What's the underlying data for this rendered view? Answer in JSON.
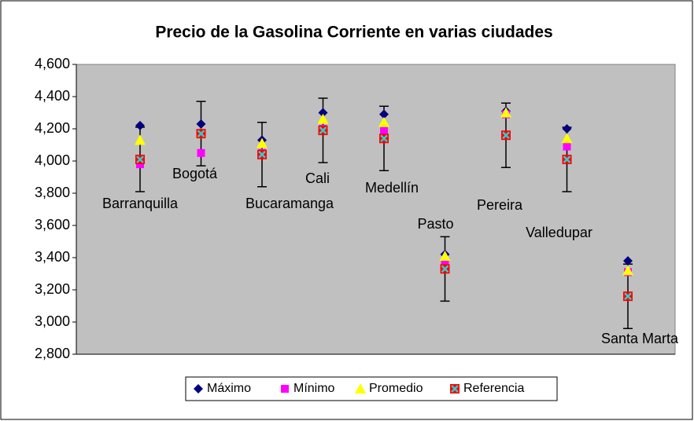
{
  "chart_data": {
    "type": "dot-range",
    "title": "Precio de la Gasolina Corriente en varias ciudades",
    "categories": [
      "Barranquilla",
      "Bogotá",
      "Bucaramanga",
      "Cali",
      "Medellín",
      "Pasto",
      "Pereira",
      "Valledupar",
      "Santa Marta"
    ],
    "series": [
      {
        "name": "Máximo",
        "color": "#000080",
        "marker": "diamond",
        "values": [
          4220,
          4230,
          4130,
          4300,
          4290,
          3420,
          4310,
          4200,
          3380
        ]
      },
      {
        "name": "Mínimo",
        "color": "#ff00ff",
        "marker": "square",
        "values": [
          3980,
          4050,
          4050,
          4200,
          4190,
          3360,
          4290,
          4090,
          3310
        ]
      },
      {
        "name": "Promedio",
        "color": "#ffff00",
        "marker": "triangle",
        "values": [
          4130,
          4170,
          4110,
          4260,
          4240,
          3410,
          4300,
          4140,
          3320
        ]
      },
      {
        "name": "Referencia",
        "color": "#ff0000",
        "marker": "x-square",
        "values": [
          4010,
          4170,
          4040,
          4190,
          4140,
          3330,
          4160,
          4010,
          3160
        ],
        "error": [
          200,
          200,
          200,
          200,
          200,
          200,
          200,
          200,
          200
        ]
      }
    ],
    "ylim": [
      2800,
      4600
    ],
    "yticks": [
      {
        "value": 2800,
        "label": "2,800"
      },
      {
        "value": 3000,
        "label": "3,000"
      },
      {
        "value": 3200,
        "label": "3,200"
      },
      {
        "value": 3400,
        "label": "3,400"
      },
      {
        "value": 3600,
        "label": "3,600"
      },
      {
        "value": 3800,
        "label": "3,800"
      },
      {
        "value": 4000,
        "label": "4,000"
      },
      {
        "value": 4200,
        "label": "4,200"
      },
      {
        "value": 4400,
        "label": "4,400"
      },
      {
        "value": 4600,
        "label": "4,600"
      }
    ],
    "plot_background": "#c0c0c0",
    "legend": "bottom"
  }
}
